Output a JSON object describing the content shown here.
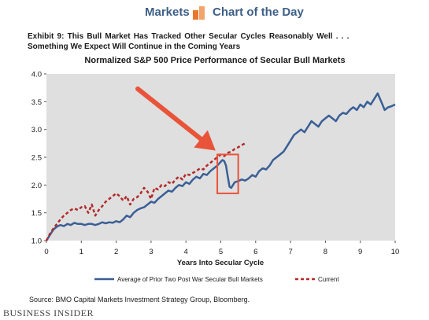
{
  "header": {
    "markets_label": "Markets",
    "chart_of_the_day_label": "Chart of the Day"
  },
  "exhibit": {
    "line1": "Exhibit 9: This Bull Market Has Tracked Other Secular Cycles Reasonably Well . . .",
    "line2": "Something We Expect Will Continue in the Coming Years"
  },
  "colors": {
    "header_text": "#3d5f87",
    "logo_orange": "#e8782d",
    "plot_background": "#dfdfdf",
    "average_series": "#3a5f96",
    "current_series": "#b32a2a",
    "annotation_red": "#e8533a"
  },
  "chart_data": {
    "type": "line",
    "title": "Normalized S&P 500 Price Performance of Secular Bull Markets",
    "xlabel": "Years Into Secular Cycle",
    "ylabel": "",
    "xlim": [
      0,
      10
    ],
    "ylim": [
      1.0,
      4.0
    ],
    "xticks": [
      0,
      1,
      2,
      3,
      4,
      5,
      6,
      7,
      8,
      9,
      10
    ],
    "yticks": [
      1.0,
      1.5,
      2.0,
      2.5,
      3.0,
      3.5,
      4.0
    ],
    "ytick_labels": [
      "1.0",
      "1.5",
      "2.0",
      "2.5",
      "3.0",
      "3.5",
      "4.0"
    ],
    "grid": false,
    "legend_position": "bottom",
    "series": [
      {
        "name": "Average of Prior Two Post War Secular Bull Markets",
        "style": "solid",
        "x": [
          0,
          0.1,
          0.2,
          0.3,
          0.4,
          0.5,
          0.6,
          0.7,
          0.8,
          0.9,
          1.0,
          1.1,
          1.2,
          1.3,
          1.4,
          1.5,
          1.6,
          1.7,
          1.8,
          1.9,
          2.0,
          2.1,
          2.2,
          2.3,
          2.4,
          2.5,
          2.6,
          2.7,
          2.8,
          2.9,
          3.0,
          3.1,
          3.2,
          3.3,
          3.4,
          3.5,
          3.6,
          3.7,
          3.8,
          3.9,
          4.0,
          4.1,
          4.2,
          4.3,
          4.4,
          4.5,
          4.6,
          4.7,
          4.8,
          4.9,
          5.0,
          5.05,
          5.1,
          5.15,
          5.2,
          5.25,
          5.3,
          5.35,
          5.4,
          5.5,
          5.6,
          5.7,
          5.8,
          5.9,
          6.0,
          6.1,
          6.2,
          6.3,
          6.4,
          6.5,
          6.6,
          6.7,
          6.8,
          6.9,
          7.0,
          7.1,
          7.2,
          7.3,
          7.4,
          7.5,
          7.6,
          7.7,
          7.8,
          7.9,
          8.0,
          8.1,
          8.2,
          8.3,
          8.4,
          8.5,
          8.6,
          8.7,
          8.8,
          8.9,
          9.0,
          9.1,
          9.2,
          9.3,
          9.4,
          9.5,
          9.6,
          9.7,
          9.8,
          9.9,
          10.0
        ],
        "values": [
          1.0,
          1.1,
          1.2,
          1.25,
          1.28,
          1.26,
          1.3,
          1.28,
          1.32,
          1.3,
          1.3,
          1.28,
          1.3,
          1.3,
          1.28,
          1.3,
          1.33,
          1.31,
          1.33,
          1.32,
          1.35,
          1.33,
          1.38,
          1.45,
          1.42,
          1.5,
          1.55,
          1.58,
          1.6,
          1.65,
          1.7,
          1.68,
          1.75,
          1.8,
          1.85,
          1.9,
          1.88,
          1.95,
          2.0,
          1.98,
          2.05,
          2.02,
          2.1,
          2.15,
          2.12,
          2.2,
          2.18,
          2.25,
          2.3,
          2.35,
          2.42,
          2.45,
          2.43,
          2.35,
          2.15,
          1.97,
          1.95,
          2.0,
          2.05,
          2.07,
          2.1,
          2.08,
          2.12,
          2.18,
          2.15,
          2.25,
          2.3,
          2.28,
          2.35,
          2.45,
          2.5,
          2.55,
          2.6,
          2.7,
          2.8,
          2.9,
          2.95,
          3.0,
          2.95,
          3.05,
          3.15,
          3.1,
          3.05,
          3.15,
          3.2,
          3.25,
          3.2,
          3.15,
          3.25,
          3.3,
          3.28,
          3.35,
          3.4,
          3.35,
          3.45,
          3.4,
          3.5,
          3.45,
          3.55,
          3.65,
          3.5,
          3.35,
          3.4,
          3.42,
          3.45
        ]
      },
      {
        "name": "Current",
        "style": "dashed",
        "x": [
          0,
          0.1,
          0.2,
          0.3,
          0.4,
          0.5,
          0.6,
          0.7,
          0.8,
          0.9,
          1.0,
          1.1,
          1.2,
          1.3,
          1.4,
          1.5,
          1.6,
          1.7,
          1.8,
          1.9,
          2.0,
          2.1,
          2.2,
          2.3,
          2.4,
          2.5,
          2.6,
          2.7,
          2.8,
          2.9,
          3.0,
          3.1,
          3.2,
          3.3,
          3.4,
          3.5,
          3.6,
          3.7,
          3.8,
          3.9,
          4.0,
          4.1,
          4.2,
          4.3,
          4.4,
          4.5,
          4.6,
          4.7,
          4.8,
          4.9,
          5.0,
          5.1,
          5.2,
          5.3,
          5.4,
          5.5,
          5.6,
          5.7
        ],
        "values": [
          1.0,
          1.12,
          1.22,
          1.3,
          1.38,
          1.45,
          1.5,
          1.55,
          1.58,
          1.55,
          1.6,
          1.62,
          1.5,
          1.65,
          1.45,
          1.55,
          1.62,
          1.7,
          1.75,
          1.8,
          1.85,
          1.8,
          1.72,
          1.8,
          1.65,
          1.75,
          1.78,
          1.85,
          1.95,
          1.88,
          1.75,
          1.95,
          1.92,
          2.0,
          1.98,
          2.05,
          2.02,
          2.1,
          2.15,
          2.1,
          2.2,
          2.18,
          2.22,
          2.25,
          2.3,
          2.28,
          2.35,
          2.4,
          2.45,
          2.5,
          2.55,
          2.52,
          2.58,
          2.6,
          2.65,
          2.68,
          2.72,
          2.75
        ]
      }
    ],
    "annotations": [
      {
        "type": "arrow",
        "color": "#e8533a",
        "points_to": {
          "x": 4.85,
          "y": 2.62
        }
      },
      {
        "type": "box",
        "color": "#e8533a",
        "x_range": [
          4.9,
          5.5
        ],
        "y_range": [
          1.85,
          2.55
        ]
      }
    ]
  },
  "source": "Source: BMO Capital Markets Investment Strategy Group, Bloomberg.",
  "brand": "BUSINESS INSIDER"
}
